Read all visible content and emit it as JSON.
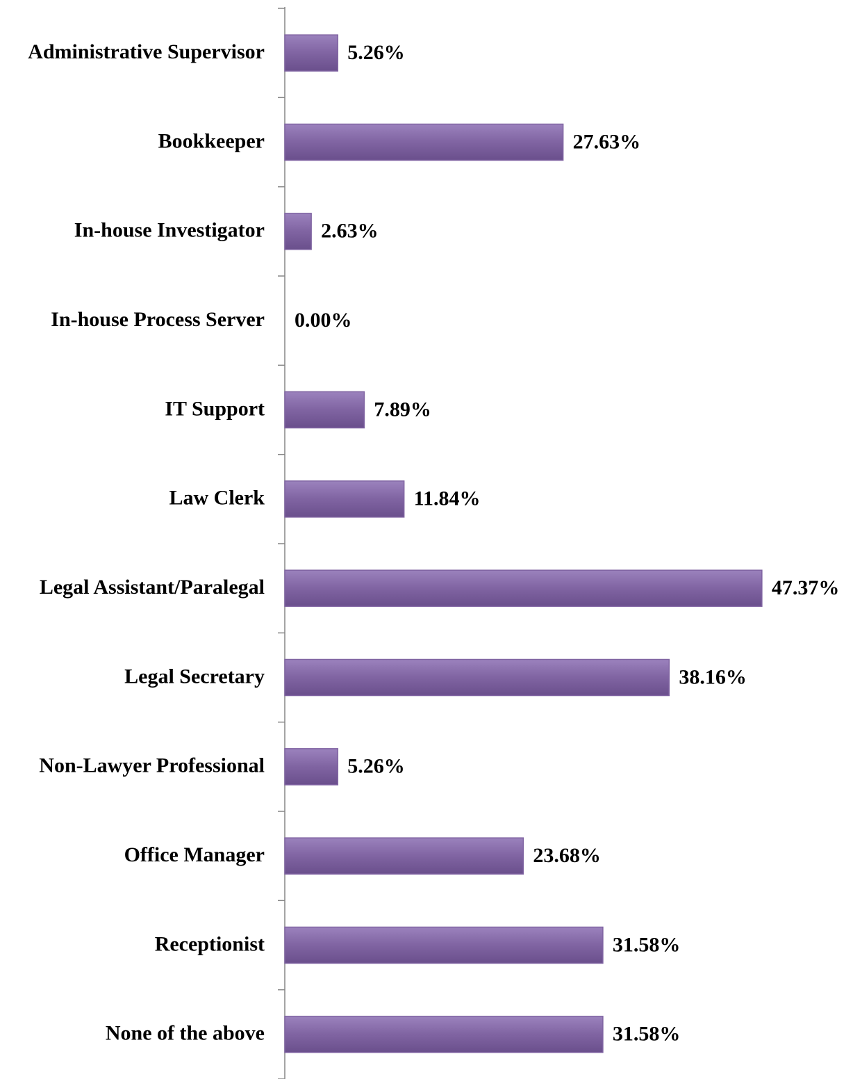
{
  "chart_data": {
    "type": "bar",
    "orientation": "horizontal",
    "categories": [
      "Administrative Supervisor",
      "Bookkeeper",
      "In-house Investigator",
      "In-house Process Server",
      "IT Support",
      "Law Clerk",
      "Legal Assistant/Paralegal",
      "Legal Secretary",
      "Non-Lawyer Professional",
      "Office Manager",
      "Receptionist",
      "None of the above"
    ],
    "values": [
      5.26,
      27.63,
      2.63,
      0,
      7.89,
      11.84,
      47.37,
      38.16,
      5.26,
      23.68,
      31.58,
      31.58
    ],
    "value_labels": [
      "5.26%",
      "27.63%",
      "2.63%",
      "0.00%",
      "7.89%",
      "11.84%",
      "47.37%",
      "38.16%",
      "5.26%",
      "23.68%",
      "31.58%",
      "31.58%"
    ],
    "color": "#8064a2"
  }
}
